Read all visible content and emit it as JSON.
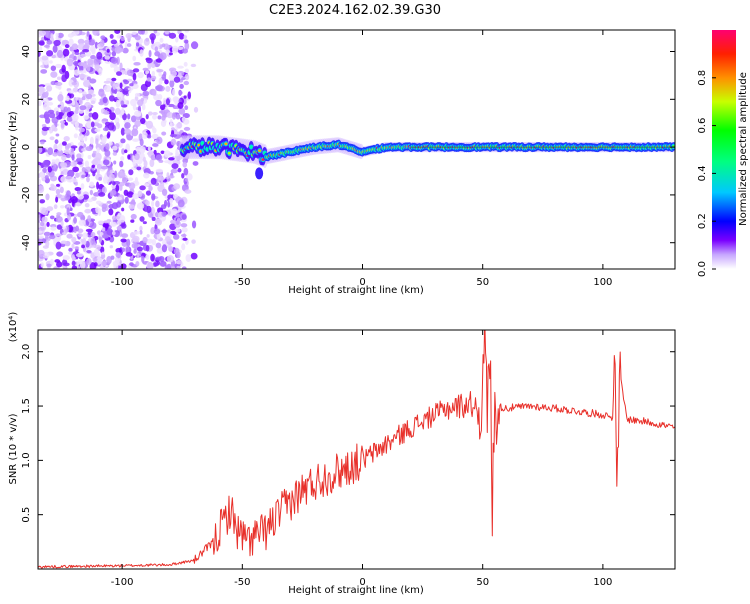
{
  "figure": {
    "title": "C2E3.2024.162.02.39.G30"
  },
  "chart_data": [
    {
      "type": "heatmap",
      "xlabel": "Height of straight line (km)",
      "ylabel": "Frequency (Hz)",
      "xlim": [
        -135,
        130
      ],
      "ylim": [
        -51,
        49
      ],
      "x_ticks": [
        -100,
        -50,
        0,
        50,
        100
      ],
      "y_ticks": [
        -40,
        -20,
        0,
        20,
        40
      ],
      "colorbar": {
        "label": "Normalized spectral amplitude",
        "range": [
          0,
          1
        ],
        "ticks": [
          "0.0",
          "0.2",
          "0.4",
          "0.6",
          "0.8"
        ],
        "colors": [
          "#ffffff",
          "#7a00ff",
          "#0000ff",
          "#00c8ff",
          "#00ff40",
          "#c8ff00",
          "#ff8000",
          "#ff0060"
        ]
      },
      "ridge": {
        "description_values": [
          {
            "x": -75,
            "y": 0
          },
          {
            "x": -60,
            "y": 0
          },
          {
            "x": -45,
            "y": -2
          },
          {
            "x": -40,
            "y": -4
          },
          {
            "x": -30,
            "y": -2
          },
          {
            "x": -20,
            "y": 0
          },
          {
            "x": -10,
            "y": 1
          },
          {
            "x": 0,
            "y": -2
          },
          {
            "x": 10,
            "y": 0
          },
          {
            "x": 50,
            "y": 0
          },
          {
            "x": 105,
            "y": 0
          },
          {
            "x": 130,
            "y": 0
          }
        ],
        "noise_region_x": [
          -135,
          -73
        ]
      }
    },
    {
      "type": "line",
      "xlabel": "Height of straight line (km)",
      "ylabel": "SNR (10 * v/v)",
      "y_exponent": "(x10⁴)",
      "xlim": [
        -135,
        130
      ],
      "ylim": [
        0.0,
        2.2
      ],
      "x_ticks": [
        -100,
        -50,
        0,
        50,
        100
      ],
      "y_ticks": [
        "0.5",
        "1.0",
        "1.5",
        "2.0"
      ],
      "color": "#e8302a",
      "series": [
        {
          "name": "",
          "x": [
            -135,
            -100,
            -80,
            -70,
            -62,
            -55,
            -52,
            -48,
            -45,
            -40,
            -35,
            -30,
            -25,
            -20,
            -15,
            -10,
            -5,
            0,
            10,
            20,
            30,
            35,
            40,
            45,
            48,
            50,
            51,
            52,
            53,
            54,
            55,
            60,
            70,
            80,
            90,
            100,
            104,
            105,
            106,
            107,
            110,
            120,
            130
          ],
          "y": [
            0.02,
            0.03,
            0.04,
            0.08,
            0.25,
            0.55,
            0.35,
            0.25,
            0.3,
            0.35,
            0.5,
            0.62,
            0.72,
            0.8,
            0.85,
            0.9,
            0.95,
            1.0,
            1.15,
            1.3,
            1.42,
            1.48,
            1.5,
            1.52,
            1.5,
            1.55,
            2.2,
            1.4,
            2.1,
            0.55,
            1.5,
            1.48,
            1.5,
            1.48,
            1.45,
            1.42,
            1.4,
            1.85,
            0.75,
            1.8,
            1.38,
            1.35,
            1.3
          ]
        }
      ]
    }
  ]
}
